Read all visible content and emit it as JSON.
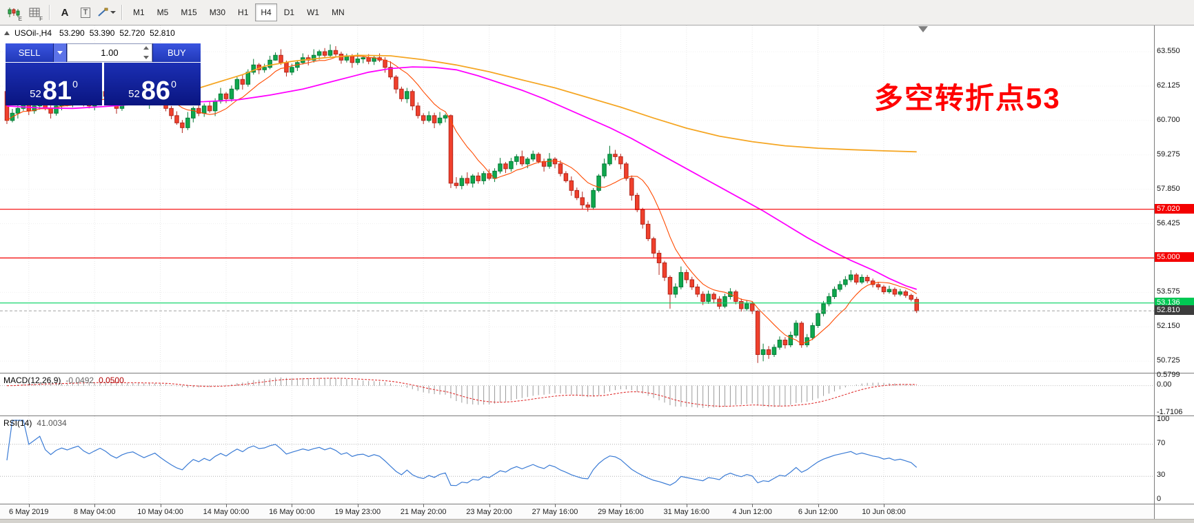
{
  "toolbar": {
    "icons": [
      {
        "name": "candlestick-chart-icon",
        "badge": "E"
      },
      {
        "name": "grid-list-icon",
        "badge": "F"
      },
      {
        "name": "text-label-icon",
        "glyph": "A"
      },
      {
        "name": "text-box-icon",
        "glyph": "T"
      },
      {
        "name": "draw-tools-icon"
      }
    ],
    "timeframes": [
      "M1",
      "M5",
      "M15",
      "M30",
      "H1",
      "H4",
      "D1",
      "W1",
      "MN"
    ],
    "active_timeframe": "H4"
  },
  "chart_header": {
    "symbol": "USOil-,H4",
    "open": "53.290",
    "high": "53.390",
    "low": "52.720",
    "close": "52.810"
  },
  "trade_panel": {
    "sell_label": "SELL",
    "buy_label": "BUY",
    "volume": "1.00",
    "bid": {
      "int": "52",
      "pips": "81",
      "sup": "0"
    },
    "ask": {
      "int": "52",
      "pips": "86",
      "sup": "0"
    }
  },
  "annotation": {
    "text": "多空转折点53",
    "color": "#ff0000"
  },
  "price_axis": {
    "labels": [
      "63.550",
      "62.125",
      "60.700",
      "59.275",
      "57.850",
      "56.425",
      "55.000",
      "53.575",
      "52.150",
      "50.725"
    ],
    "grid_prices": [
      63.55,
      62.125,
      60.7,
      59.275,
      57.85,
      56.425,
      55.0,
      53.575,
      52.15,
      50.725
    ]
  },
  "levels": [
    {
      "price": 57.02,
      "label": "57.020",
      "color": "#f40000",
      "label_bg": "#f40000",
      "label_fg": "#ffffff"
    },
    {
      "price": 55.0,
      "label": "55.000",
      "color": "#f40000",
      "label_bg": "#f40000",
      "label_fg": "#ffffff"
    },
    {
      "price": 53.136,
      "label": "53.136",
      "color": "#00d25f",
      "label_bg": "#00c853",
      "label_fg": "#ffffff"
    }
  ],
  "current_price": {
    "value": 52.81,
    "label": "52.810",
    "label_bg": "#3c3c3c",
    "label_fg": "#ffffff",
    "line_color": "#a0a0a0"
  },
  "macd_panel": {
    "title": "MACD(12,26,9)",
    "value_main": "-0.0492",
    "value_signal": "0.0500",
    "axis": [
      "0.5799",
      "0.00",
      "-1.7106"
    ],
    "max": 0.5799,
    "min": -1.7106,
    "hist_color": "#9a9a9a",
    "signal_color": "#e03030"
  },
  "rsi_panel": {
    "title": "RSI(14)",
    "value": "41.0034",
    "axis": [
      "100",
      "70",
      "30",
      "0"
    ],
    "levels": [
      70,
      30
    ],
    "line_color": "#3a7bd5"
  },
  "time_axis": {
    "ticks": [
      {
        "i": 4,
        "label": "6 May 2019"
      },
      {
        "i": 16,
        "label": "8 May 04:00"
      },
      {
        "i": 28,
        "label": "10 May 04:00"
      },
      {
        "i": 40,
        "label": "14 May 00:00"
      },
      {
        "i": 52,
        "label": "16 May 00:00"
      },
      {
        "i": 64,
        "label": "19 May 23:00"
      },
      {
        "i": 76,
        "label": "21 May 20:00"
      },
      {
        "i": 88,
        "label": "23 May 20:00"
      },
      {
        "i": 100,
        "label": "27 May 16:00"
      },
      {
        "i": 112,
        "label": "29 May 16:00"
      },
      {
        "i": 124,
        "label": "31 May 16:00"
      },
      {
        "i": 136,
        "label": "4 Jun 12:00"
      },
      {
        "i": 148,
        "label": "6 Jun 12:00"
      },
      {
        "i": 160,
        "label": "10 Jun 08:00"
      }
    ]
  },
  "chart_data": {
    "type": "candlestick",
    "symbol": "USOil",
    "timeframe": "H4",
    "ylim": [
      50.2,
      63.9
    ],
    "up_color": "#0fa84e",
    "down_color": "#f0402c",
    "up_edge": "#067a36",
    "down_edge": "#b3261c",
    "candles": [
      [
        61.9,
        62.0,
        60.55,
        60.7
      ],
      [
        60.7,
        61.18,
        60.62,
        61.0
      ],
      [
        61.0,
        61.32,
        60.78,
        61.2
      ],
      [
        61.2,
        61.65,
        61.1,
        61.4
      ],
      [
        61.4,
        61.48,
        60.92,
        61.1
      ],
      [
        61.1,
        61.45,
        60.98,
        61.3
      ],
      [
        61.3,
        61.7,
        61.15,
        61.6
      ],
      [
        61.6,
        61.78,
        61.12,
        61.2
      ],
      [
        61.2,
        61.32,
        60.78,
        61.0
      ],
      [
        61.0,
        61.55,
        60.9,
        61.3
      ],
      [
        61.3,
        61.58,
        61.12,
        61.5
      ],
      [
        61.5,
        61.65,
        61.28,
        61.4
      ],
      [
        61.4,
        61.7,
        61.25,
        61.6
      ],
      [
        61.6,
        61.98,
        61.52,
        61.8
      ],
      [
        61.8,
        61.92,
        61.28,
        61.5
      ],
      [
        61.5,
        61.75,
        61.2,
        61.3
      ],
      [
        61.3,
        61.68,
        61.12,
        61.6
      ],
      [
        61.6,
        62.05,
        61.48,
        61.9
      ],
      [
        61.9,
        62.0,
        61.55,
        61.7
      ],
      [
        61.7,
        61.88,
        61.32,
        61.4
      ],
      [
        61.4,
        61.52,
        60.98,
        61.2
      ],
      [
        61.2,
        61.75,
        61.1,
        61.5
      ],
      [
        61.5,
        61.78,
        61.32,
        61.7
      ],
      [
        61.7,
        61.95,
        61.58,
        61.8
      ],
      [
        61.8,
        61.9,
        61.45,
        61.6
      ],
      [
        61.6,
        61.78,
        61.32,
        61.4
      ],
      [
        61.4,
        61.72,
        61.18,
        61.6
      ],
      [
        61.6,
        62.05,
        61.5,
        61.8
      ],
      [
        61.8,
        61.88,
        61.32,
        61.5
      ],
      [
        61.5,
        61.65,
        61.08,
        61.2
      ],
      [
        61.2,
        61.3,
        60.75,
        60.9
      ],
      [
        60.9,
        61.08,
        60.52,
        60.6
      ],
      [
        60.6,
        60.72,
        60.18,
        60.4
      ],
      [
        60.4,
        61.05,
        60.3,
        60.8
      ],
      [
        60.8,
        61.28,
        60.62,
        61.2
      ],
      [
        61.2,
        61.35,
        60.88,
        61.0
      ],
      [
        61.0,
        61.4,
        60.85,
        61.3
      ],
      [
        61.3,
        61.48,
        61.02,
        61.1
      ],
      [
        61.1,
        61.62,
        60.88,
        61.5
      ],
      [
        61.5,
        62.05,
        61.4,
        61.8
      ],
      [
        61.8,
        61.88,
        61.42,
        61.6
      ],
      [
        61.6,
        62.15,
        61.48,
        62.0
      ],
      [
        62.0,
        62.5,
        61.92,
        62.4
      ],
      [
        62.4,
        62.58,
        61.98,
        62.2
      ],
      [
        62.2,
        62.82,
        62.1,
        62.7
      ],
      [
        62.7,
        63.25,
        62.6,
        63.0
      ],
      [
        63.0,
        63.08,
        62.62,
        62.8
      ],
      [
        62.8,
        63.05,
        62.68,
        62.9
      ],
      [
        62.9,
        63.38,
        62.82,
        63.2
      ],
      [
        63.2,
        63.52,
        63.18,
        63.4
      ],
      [
        63.4,
        63.65,
        63.0,
        63.1
      ],
      [
        63.1,
        63.18,
        62.52,
        62.7
      ],
      [
        62.7,
        63.05,
        62.58,
        62.9
      ],
      [
        62.9,
        63.2,
        62.75,
        63.1
      ],
      [
        63.1,
        63.48,
        63.02,
        63.3
      ],
      [
        63.3,
        63.42,
        62.98,
        63.2
      ],
      [
        63.2,
        63.65,
        63.1,
        63.4
      ],
      [
        63.4,
        63.63,
        63.22,
        63.55
      ],
      [
        63.55,
        63.7,
        63.28,
        63.4
      ],
      [
        63.4,
        63.85,
        63.3,
        63.6
      ],
      [
        63.6,
        63.78,
        63.35,
        63.45
      ],
      [
        63.45,
        63.55,
        63.05,
        63.2
      ],
      [
        63.2,
        63.47,
        63.1,
        63.35
      ],
      [
        63.35,
        63.45,
        62.88,
        63.1
      ],
      [
        63.1,
        63.5,
        63.0,
        63.25
      ],
      [
        63.25,
        63.38,
        63.07,
        63.3
      ],
      [
        63.3,
        63.45,
        63.03,
        63.15
      ],
      [
        63.15,
        63.4,
        63.0,
        63.3
      ],
      [
        63.3,
        63.48,
        63.12,
        63.2
      ],
      [
        63.2,
        63.32,
        62.68,
        62.9
      ],
      [
        62.9,
        63.15,
        62.4,
        62.5
      ],
      [
        62.5,
        62.58,
        61.82,
        62.0
      ],
      [
        62.0,
        62.1,
        61.48,
        61.6
      ],
      [
        61.6,
        62.05,
        61.42,
        61.9
      ],
      [
        61.9,
        61.98,
        61.12,
        61.3
      ],
      [
        61.3,
        61.45,
        60.78,
        60.9
      ],
      [
        60.9,
        61.0,
        60.55,
        60.7
      ],
      [
        60.7,
        61.08,
        60.62,
        60.9
      ],
      [
        60.9,
        61.02,
        60.38,
        60.6
      ],
      [
        60.6,
        61.05,
        60.5,
        60.8
      ],
      [
        60.8,
        60.98,
        60.62,
        60.9
      ],
      [
        60.9,
        60.95,
        57.9,
        58.1
      ],
      [
        58.1,
        58.35,
        57.88,
        58.0
      ],
      [
        58.0,
        58.42,
        57.85,
        58.3
      ],
      [
        58.3,
        58.55,
        58.0,
        58.1
      ],
      [
        58.1,
        58.48,
        57.92,
        58.4
      ],
      [
        58.4,
        58.55,
        58.08,
        58.2
      ],
      [
        58.2,
        58.6,
        58.05,
        58.5
      ],
      [
        58.5,
        58.68,
        58.22,
        58.3
      ],
      [
        58.3,
        58.72,
        58.15,
        58.6
      ],
      [
        58.6,
        59.15,
        58.5,
        58.9
      ],
      [
        58.9,
        58.98,
        58.52,
        58.7
      ],
      [
        58.7,
        59.15,
        58.58,
        59.0
      ],
      [
        59.0,
        59.3,
        58.85,
        59.2
      ],
      [
        59.2,
        59.45,
        58.8,
        58.9
      ],
      [
        58.9,
        59.18,
        58.72,
        59.1
      ],
      [
        59.1,
        59.45,
        59.0,
        59.3
      ],
      [
        59.3,
        59.38,
        58.92,
        59.0
      ],
      [
        59.0,
        59.12,
        58.58,
        58.8
      ],
      [
        58.8,
        59.35,
        58.7,
        59.1
      ],
      [
        59.1,
        59.18,
        58.72,
        58.9
      ],
      [
        58.9,
        59.05,
        58.38,
        58.5
      ],
      [
        58.5,
        58.6,
        58.12,
        58.2
      ],
      [
        58.2,
        58.38,
        57.58,
        57.8
      ],
      [
        57.8,
        57.92,
        57.4,
        57.5
      ],
      [
        57.5,
        57.75,
        57.02,
        57.2
      ],
      [
        57.2,
        57.32,
        56.92,
        57.1
      ],
      [
        57.1,
        57.9,
        57.0,
        57.8
      ],
      [
        57.8,
        58.48,
        57.72,
        58.4
      ],
      [
        58.4,
        59.12,
        58.3,
        58.9
      ],
      [
        58.9,
        59.65,
        58.82,
        59.3
      ],
      [
        59.3,
        59.48,
        59.05,
        59.2
      ],
      [
        59.2,
        59.32,
        58.68,
        58.9
      ],
      [
        58.9,
        58.98,
        58.2,
        58.3
      ],
      [
        58.3,
        58.42,
        57.38,
        57.6
      ],
      [
        57.6,
        57.7,
        56.9,
        57.0
      ],
      [
        57.0,
        57.08,
        56.22,
        56.4
      ],
      [
        56.4,
        56.55,
        55.7,
        55.8
      ],
      [
        55.8,
        55.88,
        55.02,
        55.2
      ],
      [
        55.2,
        55.32,
        54.3,
        54.8
      ],
      [
        54.8,
        54.88,
        54.05,
        54.2
      ],
      [
        54.2,
        54.28,
        52.9,
        53.5
      ],
      [
        53.5,
        53.95,
        53.35,
        53.8
      ],
      [
        53.8,
        54.65,
        53.7,
        54.4
      ],
      [
        54.4,
        54.52,
        53.95,
        54.1
      ],
      [
        54.1,
        54.22,
        53.68,
        53.8
      ],
      [
        53.8,
        53.92,
        53.38,
        53.5
      ],
      [
        53.5,
        53.62,
        53.05,
        53.2
      ],
      [
        53.2,
        53.65,
        53.1,
        53.5
      ],
      [
        53.5,
        53.58,
        53.12,
        53.3
      ],
      [
        53.3,
        53.42,
        52.88,
        53.0
      ],
      [
        53.0,
        53.52,
        52.92,
        53.4
      ],
      [
        53.4,
        53.75,
        53.28,
        53.6
      ],
      [
        53.6,
        53.68,
        53.08,
        53.2
      ],
      [
        53.2,
        53.32,
        52.78,
        52.9
      ],
      [
        52.9,
        53.25,
        52.8,
        53.1
      ],
      [
        53.1,
        53.18,
        52.68,
        52.8
      ],
      [
        52.8,
        52.85,
        50.65,
        51.0
      ],
      [
        51.0,
        51.45,
        50.72,
        51.2
      ],
      [
        51.2,
        51.35,
        50.82,
        51.0
      ],
      [
        51.0,
        51.42,
        50.9,
        51.3
      ],
      [
        51.3,
        51.75,
        51.2,
        51.6
      ],
      [
        51.6,
        51.72,
        51.25,
        51.4
      ],
      [
        51.4,
        51.95,
        51.3,
        51.8
      ],
      [
        51.8,
        52.42,
        51.7,
        52.3
      ],
      [
        52.3,
        52.38,
        51.28,
        51.4
      ],
      [
        51.4,
        51.85,
        51.3,
        51.7
      ],
      [
        51.7,
        52.32,
        51.6,
        52.2
      ],
      [
        52.2,
        52.85,
        52.1,
        52.7
      ],
      [
        52.7,
        53.22,
        52.58,
        53.1
      ],
      [
        53.1,
        53.55,
        53.0,
        53.4
      ],
      [
        53.4,
        53.82,
        53.3,
        53.7
      ],
      [
        53.7,
        54.05,
        53.6,
        53.9
      ],
      [
        53.9,
        54.25,
        53.8,
        54.1
      ],
      [
        54.1,
        54.5,
        54.0,
        54.3
      ],
      [
        54.3,
        54.38,
        53.9,
        54.0
      ],
      [
        54.0,
        54.32,
        53.92,
        54.2
      ],
      [
        54.2,
        54.3,
        53.95,
        54.05
      ],
      [
        54.05,
        54.15,
        53.78,
        53.9
      ],
      [
        53.9,
        54.0,
        53.68,
        53.8
      ],
      [
        53.8,
        53.88,
        53.5,
        53.6
      ],
      [
        53.6,
        53.85,
        53.52,
        53.7
      ],
      [
        53.7,
        53.78,
        53.4,
        53.5
      ],
      [
        53.5,
        53.72,
        53.42,
        53.6
      ],
      [
        53.6,
        53.68,
        53.35,
        53.45
      ],
      [
        53.45,
        53.52,
        53.2,
        53.29
      ],
      [
        53.29,
        53.39,
        52.72,
        52.81
      ]
    ],
    "ma_fast_period": 9,
    "ma_orange": {
      "color": "#f5a623",
      "points": [
        [
          33,
          61.9
        ],
        [
          38,
          62.25
        ],
        [
          43,
          62.6
        ],
        [
          47,
          62.95
        ],
        [
          52,
          63.15
        ],
        [
          58,
          63.3
        ],
        [
          64,
          63.4
        ],
        [
          70,
          63.38
        ],
        [
          76,
          63.22
        ],
        [
          82,
          63.0
        ],
        [
          88,
          62.72
        ],
        [
          94,
          62.38
        ],
        [
          100,
          62.05
        ],
        [
          106,
          61.65
        ],
        [
          112,
          61.25
        ],
        [
          118,
          60.8
        ],
        [
          124,
          60.38
        ],
        [
          130,
          60.05
        ],
        [
          136,
          59.82
        ],
        [
          142,
          59.65
        ],
        [
          148,
          59.55
        ],
        [
          154,
          59.49
        ],
        [
          160,
          59.44
        ],
        [
          166,
          59.4
        ]
      ]
    },
    "ma_magenta": {
      "color": "#ff00ff",
      "points": [
        [
          0,
          61.3
        ],
        [
          6,
          61.22
        ],
        [
          12,
          61.2
        ],
        [
          18,
          61.28
        ],
        [
          24,
          61.38
        ],
        [
          30,
          61.45
        ],
        [
          36,
          61.48
        ],
        [
          42,
          61.55
        ],
        [
          48,
          61.75
        ],
        [
          54,
          62.0
        ],
        [
          60,
          62.35
        ],
        [
          66,
          62.7
        ],
        [
          70,
          62.85
        ],
        [
          74,
          62.92
        ],
        [
          78,
          62.9
        ],
        [
          82,
          62.8
        ],
        [
          86,
          62.55
        ],
        [
          90,
          62.25
        ],
        [
          94,
          61.95
        ],
        [
          98,
          61.6
        ],
        [
          102,
          61.2
        ],
        [
          106,
          60.8
        ],
        [
          110,
          60.4
        ],
        [
          114,
          59.95
        ],
        [
          118,
          59.45
        ],
        [
          122,
          58.95
        ],
        [
          126,
          58.45
        ],
        [
          130,
          57.95
        ],
        [
          134,
          57.45
        ],
        [
          138,
          56.95
        ],
        [
          142,
          56.4
        ],
        [
          146,
          55.85
        ],
        [
          150,
          55.35
        ],
        [
          154,
          54.9
        ],
        [
          158,
          54.5
        ],
        [
          161,
          54.15
        ],
        [
          164,
          53.85
        ],
        [
          166,
          53.7
        ]
      ]
    }
  }
}
